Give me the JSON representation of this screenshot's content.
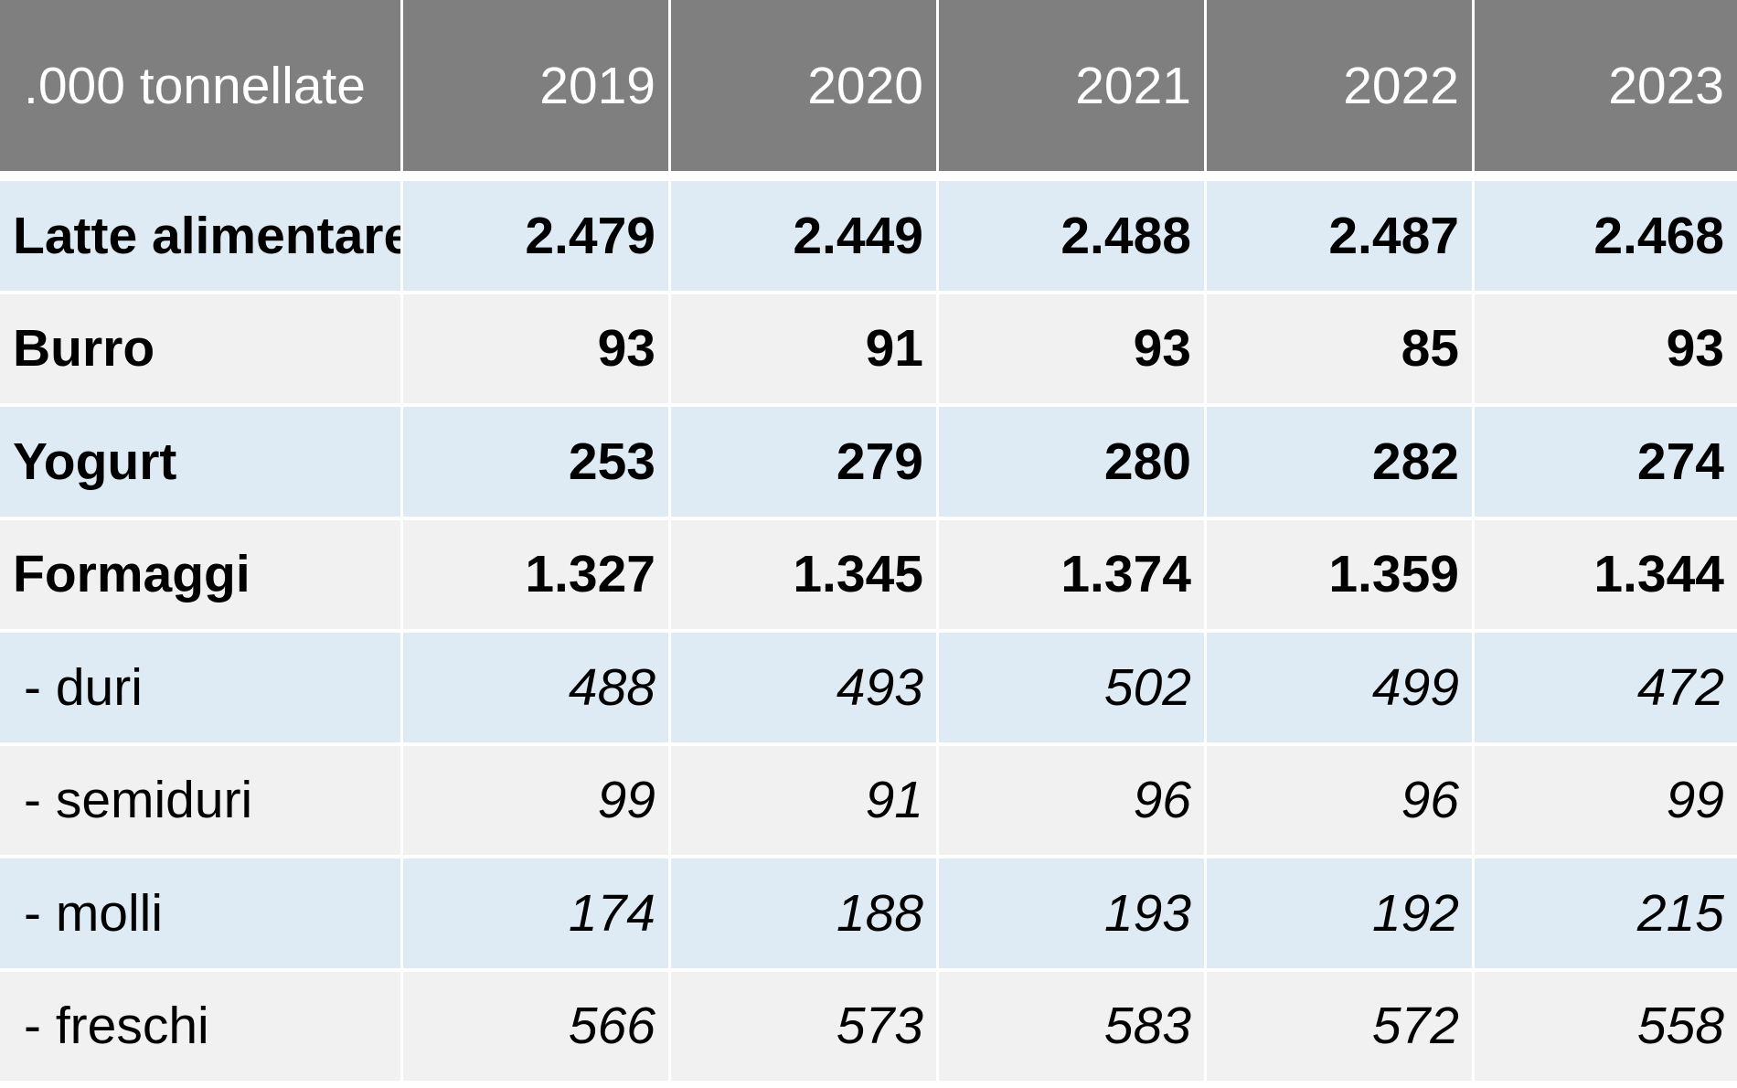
{
  "chart_data": {
    "type": "table",
    "columns": [
      ".000 tonnellate",
      "2019",
      "2020",
      "2021",
      "2022",
      "2023"
    ],
    "rows": [
      {
        "label": "Latte alimentare",
        "values": [
          "2.479",
          "2.449",
          "2.488",
          "2.487",
          "2.468"
        ],
        "style": "bold"
      },
      {
        "label": "Burro",
        "values": [
          "93",
          "91",
          "93",
          "85",
          "93"
        ],
        "style": "bold"
      },
      {
        "label": "Yogurt",
        "values": [
          "253",
          "279",
          "280",
          "282",
          "274"
        ],
        "style": "bold"
      },
      {
        "label": "Formaggi",
        "values": [
          "1.327",
          "1.345",
          "1.374",
          "1.359",
          "1.344"
        ],
        "style": "bold"
      },
      {
        "label": " - duri",
        "values": [
          "488",
          "493",
          "502",
          "499",
          "472"
        ],
        "style": "italic"
      },
      {
        "label": " - semiduri",
        "values": [
          "99",
          "91",
          "96",
          "96",
          "99"
        ],
        "style": "italic"
      },
      {
        "label": " - molli",
        "values": [
          "174",
          "188",
          "193",
          "192",
          "215"
        ],
        "style": "italic"
      },
      {
        "label": " - freschi",
        "values": [
          "566",
          "573",
          "583",
          "572",
          "558"
        ],
        "style": "italic"
      }
    ]
  },
  "colors": {
    "header_bg": "#7f7f7f",
    "header_text": "#ffffff",
    "row_band_a": "#deebf4",
    "row_band_b": "#f1f1f1",
    "grid_lines": "#ffffff"
  }
}
